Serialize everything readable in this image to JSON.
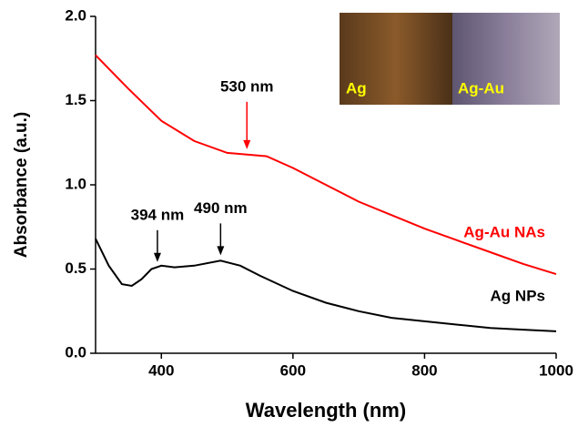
{
  "chart_data": {
    "type": "line",
    "xlabel": "Wavelength (nm)",
    "ylabel": "Absorbance (a.u.)",
    "xlim": [
      300,
      1000
    ],
    "ylim": [
      0,
      2.0
    ],
    "xticks": [
      400,
      600,
      800,
      1000
    ],
    "yticks": [
      {
        "value": 0,
        "label": "0.0"
      },
      0.5,
      {
        "value": 1,
        "label": "1.0"
      },
      1.5,
      {
        "value": 2,
        "label": "2.0"
      }
    ],
    "series": [
      {
        "name": "Ag-Au NAs",
        "color": "#ff0000",
        "x": [
          300,
          350,
          400,
          450,
          500,
          530,
          560,
          600,
          650,
          700,
          750,
          800,
          850,
          900,
          950,
          1000
        ],
        "values": [
          1.77,
          1.57,
          1.38,
          1.26,
          1.19,
          1.18,
          1.17,
          1.1,
          1.0,
          0.9,
          0.82,
          0.74,
          0.67,
          0.6,
          0.53,
          0.47
        ]
      },
      {
        "name": "Ag NPs",
        "color": "#000000",
        "x": [
          300,
          320,
          340,
          355,
          370,
          385,
          400,
          420,
          450,
          490,
          520,
          550,
          600,
          650,
          700,
          750,
          800,
          850,
          900,
          950,
          1000
        ],
        "values": [
          0.68,
          0.52,
          0.41,
          0.4,
          0.44,
          0.5,
          0.52,
          0.51,
          0.52,
          0.55,
          0.52,
          0.46,
          0.37,
          0.3,
          0.25,
          0.21,
          0.19,
          0.17,
          0.15,
          0.14,
          0.13
        ]
      }
    ],
    "annotations": [
      {
        "text": "530 nm",
        "x": 530,
        "y": 1.19,
        "color": "#ff0000"
      },
      {
        "text": "394 nm",
        "x": 394,
        "y": 0.52,
        "color": "#000000"
      },
      {
        "text": "490 nm",
        "x": 490,
        "y": 0.56,
        "color": "#000000"
      }
    ],
    "inset": {
      "labels": [
        "Ag",
        "Ag-Au"
      ]
    }
  }
}
